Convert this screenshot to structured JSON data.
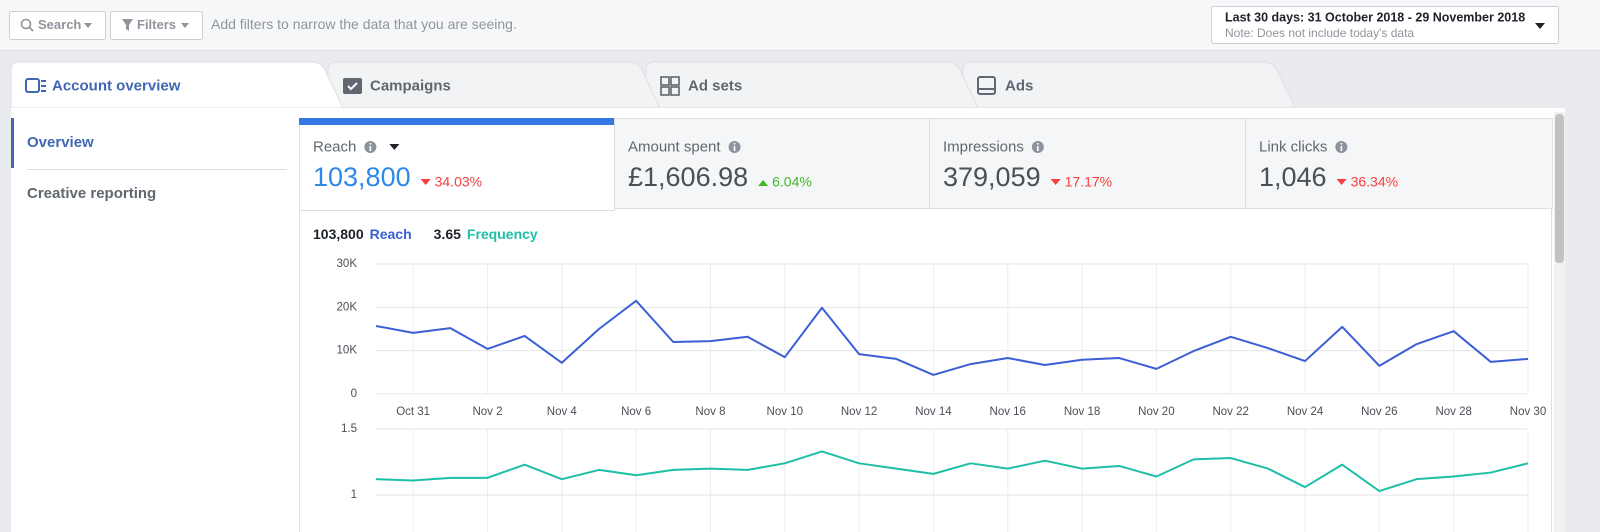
{
  "top_bar": {
    "search": "Search",
    "filters": "Filters",
    "placeholder": "Add filters to narrow the data that you are seeing.",
    "date_range": "Last 30 days: 31 October 2018 - 29 November 2018",
    "date_note": "Note: Does not include today's data"
  },
  "tabs": [
    "Account overview",
    "Campaigns",
    "Ad sets",
    "Ads"
  ],
  "sidebar": [
    "Overview",
    "Creative reporting"
  ],
  "metrics": [
    {
      "label": "Reach",
      "value": "103,800",
      "change": "34.03%",
      "direction": "down"
    },
    {
      "label": "Amount spent",
      "value": "£1,606.98",
      "change": "6.04%",
      "direction": "up"
    },
    {
      "label": "Impressions",
      "value": "379,059",
      "change": "17.17%",
      "direction": "down"
    },
    {
      "label": "Link clicks",
      "value": "1,046",
      "change": "36.34%",
      "direction": "down"
    }
  ],
  "chart_data": [
    {
      "type": "line",
      "categories": [
        null,
        "Oct 31",
        null,
        "Nov 2",
        null,
        "Nov 4",
        null,
        "Nov 6",
        null,
        "Nov 8",
        null,
        "Nov 10",
        null,
        "Nov 12",
        null,
        "Nov 14",
        null,
        "Nov 16",
        null,
        "Nov 18",
        null,
        "Nov 20",
        null,
        "Nov 22",
        null,
        "Nov 24",
        null,
        "Nov 26",
        null,
        "Nov 28",
        null,
        "Nov 30"
      ],
      "series": [
        {
          "name": "Reach",
          "total": "103,800",
          "color": "#3b5fd6",
          "values": [
            15700,
            14100,
            15200,
            10400,
            13400,
            7200,
            15000,
            21500,
            12000,
            12200,
            13200,
            8500,
            19900,
            9200,
            8100,
            4400,
            6900,
            8300,
            6700,
            7900,
            8300,
            5800,
            9900,
            13200,
            10600,
            7600,
            15500,
            6500,
            11500,
            14500,
            7400,
            8100
          ]
        }
      ],
      "ylim": [
        0,
        30000
      ],
      "yticks": [
        0,
        {
          "value": 10000,
          "label": "10K"
        },
        {
          "value": 20000,
          "label": "20K"
        },
        {
          "value": 30000,
          "label": "30K"
        }
      ],
      "grid": true
    },
    {
      "type": "line",
      "series": [
        {
          "name": "Frequency",
          "total": "3.65",
          "color": "#1fbfa5",
          "values": [
            1.12,
            1.11,
            1.13,
            1.13,
            1.23,
            1.12,
            1.19,
            1.15,
            1.19,
            1.2,
            1.19,
            1.24,
            1.33,
            1.24,
            1.2,
            1.16,
            1.24,
            1.2,
            1.26,
            1.2,
            1.22,
            1.14,
            1.27,
            1.28,
            1.2,
            1.06,
            1.23,
            1.03,
            1.12,
            1.14,
            1.17,
            1.24
          ]
        }
      ],
      "ylim": [
        1,
        1.5
      ],
      "yticks": [
        1,
        1.5
      ],
      "grid": true
    }
  ]
}
